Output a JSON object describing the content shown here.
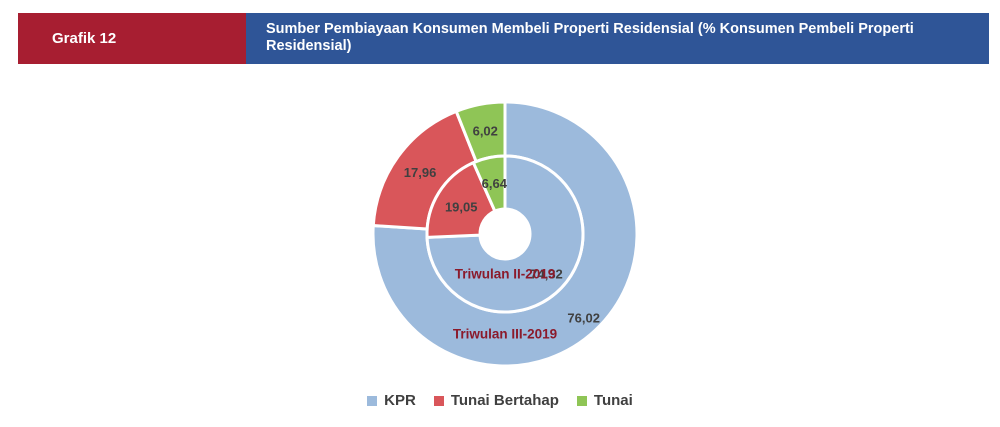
{
  "header": {
    "label": "Grafik 12",
    "title": "Sumber Pembiayaan Konsumen Membeli Properti Residensial (% Konsumen Pembeli Properti Residensial)"
  },
  "chart_data": {
    "type": "pie",
    "variant": "nested-doughnut",
    "categories": [
      "KPR",
      "Tunai Bertahap",
      "Tunai"
    ],
    "colors": [
      "#9cbadc",
      "#d9565a",
      "#8fc556"
    ],
    "series": [
      {
        "name": "Triwulan III-2019",
        "ring": "outer",
        "values": [
          76.02,
          17.96,
          6.02
        ],
        "labels": [
          "76,02",
          "17,96",
          "6,02"
        ]
      },
      {
        "name": "Triwulan II-2019",
        "ring": "inner",
        "values": [
          74.32,
          19.05,
          6.64
        ],
        "labels": [
          "74,32",
          "19,05",
          "6,64"
        ]
      }
    ],
    "legend": "bottom-center"
  }
}
